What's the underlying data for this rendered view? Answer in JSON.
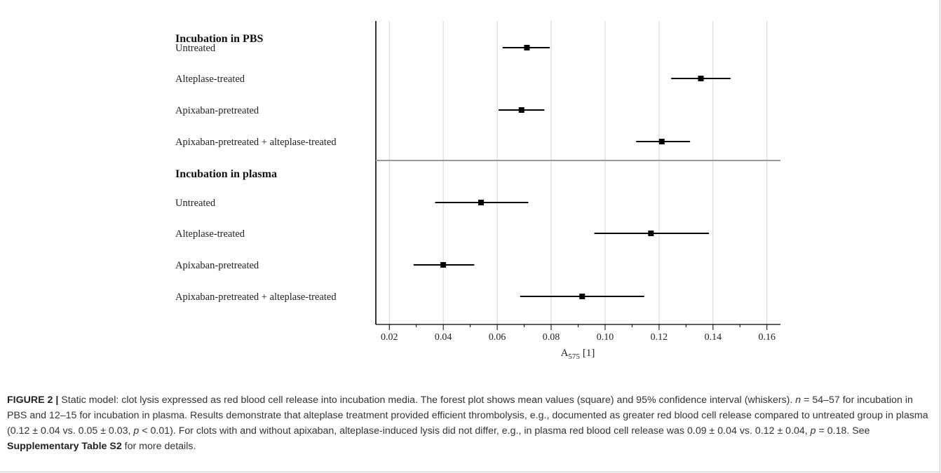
{
  "chart_data": {
    "type": "forest",
    "xlabel_main": "A",
    "xlabel_sub": "575",
    "xlabel_unit": "[1]",
    "xlim": [
      0.015,
      0.165
    ],
    "xticks": [
      "0.02",
      "0.04",
      "0.06",
      "0.08",
      "0.10",
      "0.12",
      "0.14",
      "0.16"
    ],
    "xtick_values": [
      0.02,
      0.04,
      0.06,
      0.08,
      0.1,
      0.12,
      0.14,
      0.16
    ],
    "minor_ticks": [
      0.03,
      0.05,
      0.07,
      0.09,
      0.11,
      0.13,
      0.15
    ],
    "grid": "vertical",
    "groups": [
      {
        "title": "Incubation in PBS",
        "rows": [
          {
            "label": "Untreated",
            "mean": 0.071,
            "lower": 0.062,
            "upper": 0.0795
          },
          {
            "label": "Alteplase-treated",
            "mean": 0.1355,
            "lower": 0.1245,
            "upper": 0.1465
          },
          {
            "label": "Apixaban-pretreated",
            "mean": 0.069,
            "lower": 0.0605,
            "upper": 0.0775
          },
          {
            "label": "Apixaban-pretreated + alteplase-treated",
            "mean": 0.121,
            "lower": 0.1115,
            "upper": 0.1315
          }
        ]
      },
      {
        "title": "Incubation in plasma",
        "rows": [
          {
            "label": "Untreated",
            "mean": 0.054,
            "lower": 0.037,
            "upper": 0.0715
          },
          {
            "label": "Alteplase-treated",
            "mean": 0.117,
            "lower": 0.096,
            "upper": 0.1385
          },
          {
            "label": "Apixaban-pretreated",
            "mean": 0.04,
            "lower": 0.029,
            "upper": 0.0515
          },
          {
            "label": "Apixaban-pretreated + alteplase-treated",
            "mean": 0.0915,
            "lower": 0.0685,
            "upper": 0.1145
          }
        ]
      }
    ]
  },
  "caption": {
    "figure_label": "FIGURE 2 |",
    "text_1": " Static model: clot lysis expressed as red blood cell release into incubation media. The forest plot shows mean values (square) and 95% confidence interval (whiskers). ",
    "n_symbol": "n",
    "text_2": " = 54–57 for incubation in PBS and 12–15 for incubation in plasma. Results demonstrate that alteplase treatment provided efficient thrombolysis, e.g., documented as greater red blood cell release compared to untreated group in plasma (0.12 ± 0.04 vs. 0.05 ± 0.03, ",
    "p_symbol_1": "p",
    "text_3": " < 0.01). For clots with and without apixaban, alteplase-induced lysis did not differ, e.g., in plasma red blood cell release was 0.09 ± 0.04 vs. 0.12 ± 0.04, ",
    "p_symbol_2": "p",
    "text_4": " = 0.18. See ",
    "table_ref": "Supplementary Table S2",
    "text_5": " for more details."
  }
}
